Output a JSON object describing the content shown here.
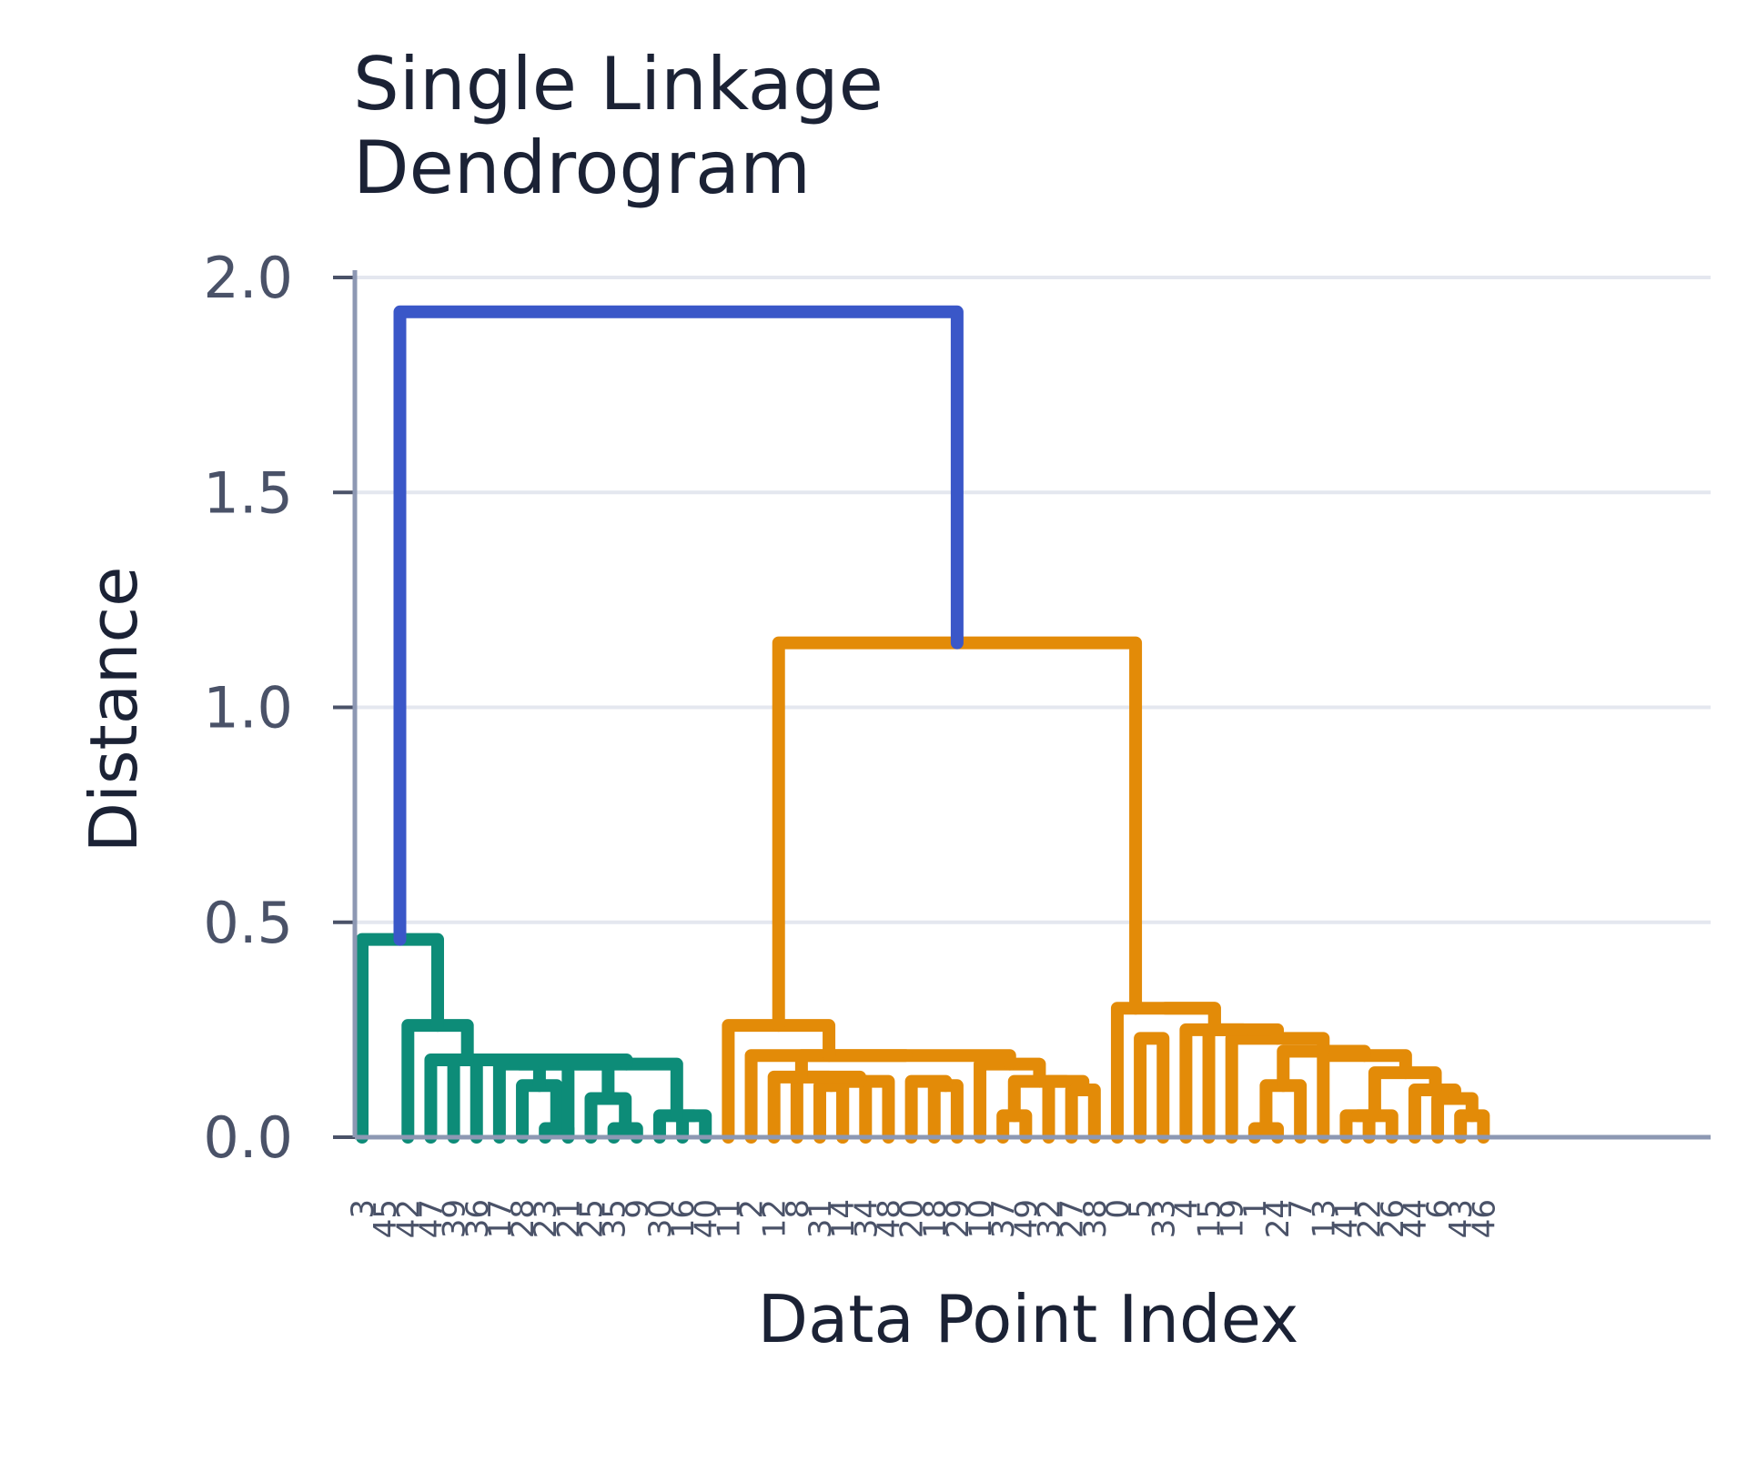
{
  "chart_data": {
    "type": "dendrogram",
    "title_lines": [
      "Single Linkage",
      "Dendrogram"
    ],
    "xlabel": "Data Point Index",
    "ylabel": "Distance",
    "ylim": [
      0,
      2.0
    ],
    "yticks": [
      0.0,
      0.5,
      1.0,
      1.5,
      2.0
    ],
    "ytick_labels": [
      "0.0",
      "0.5",
      "1.0",
      "1.5",
      "2.0"
    ],
    "grid": true,
    "leaf_order": [
      "3",
      "45",
      "42",
      "47",
      "39",
      "36",
      "17",
      "28",
      "23",
      "21",
      "25",
      "35",
      "9",
      "30",
      "16",
      "40",
      "11",
      "2",
      "12",
      "8",
      "31",
      "14",
      "34",
      "48",
      "20",
      "18",
      "29",
      "10",
      "37",
      "49",
      "32",
      "27",
      "38",
      "0",
      "5",
      "33",
      "4",
      "15",
      "19",
      "1",
      "24",
      "7",
      "13",
      "41",
      "22",
      "26",
      "44",
      "6",
      "43",
      "46"
    ],
    "colors": {
      "cluster_green": "#0d8c78",
      "cluster_orange": "#e38b08",
      "root_blue": "#3a57c8",
      "grid": "#e4e7ef",
      "axis": "#8d98b3"
    },
    "links": [
      {
        "x": [
          8,
          8,
          9,
          9
        ],
        "y": [
          0,
          0.02,
          0.02,
          0
        ],
        "color": "cluster_green"
      },
      {
        "x": [
          11,
          11,
          12,
          12
        ],
        "y": [
          0,
          0.02,
          0.02,
          0
        ],
        "color": "cluster_green"
      },
      {
        "x": [
          10,
          10,
          11.5,
          11.5
        ],
        "y": [
          0,
          0.09,
          0.09,
          0.02
        ],
        "color": "cluster_green"
      },
      {
        "x": [
          14,
          14,
          15,
          15
        ],
        "y": [
          0,
          0.05,
          0.05,
          0
        ],
        "color": "cluster_green"
      },
      {
        "x": [
          13,
          13,
          14.5,
          14.5
        ],
        "y": [
          0,
          0.05,
          0.05,
          0.05
        ],
        "color": "cluster_green"
      },
      {
        "x": [
          7,
          7,
          8.5,
          8.5
        ],
        "y": [
          0,
          0.12,
          0.12,
          0.02
        ],
        "color": "cluster_green"
      },
      {
        "x": [
          6,
          6,
          7.75,
          7.75
        ],
        "y": [
          0,
          0.17,
          0.17,
          0.12
        ],
        "color": "cluster_green"
      },
      {
        "x": [
          6.875,
          6.875,
          9,
          9
        ],
        "y": [
          0.17,
          0.17,
          0.17,
          0
        ],
        "color": "cluster_green"
      },
      {
        "x": [
          7.9375,
          7.9375,
          10.75,
          10.75
        ],
        "y": [
          0.17,
          0.17,
          0.17,
          0.09
        ],
        "color": "cluster_green"
      },
      {
        "x": [
          9.34,
          9.34,
          13.75,
          13.75
        ],
        "y": [
          0.17,
          0.17,
          0.17,
          0.05
        ],
        "color": "cluster_green"
      },
      {
        "x": [
          5,
          5,
          11.55,
          11.55
        ],
        "y": [
          0,
          0.18,
          0.18,
          0.17
        ],
        "color": "cluster_green"
      },
      {
        "x": [
          4,
          4,
          8.3,
          8.3
        ],
        "y": [
          0,
          0.18,
          0.18,
          0.18
        ],
        "color": "cluster_green"
      },
      {
        "x": [
          3,
          3,
          6.15,
          6.15
        ],
        "y": [
          0,
          0.18,
          0.18,
          0.18
        ],
        "color": "cluster_green"
      },
      {
        "x": [
          2,
          2,
          4.6,
          4.6
        ],
        "y": [
          0,
          0.26,
          0.26,
          0.18
        ],
        "color": "cluster_green"
      },
      {
        "x": [
          0,
          0,
          3.3,
          3.3
        ],
        "y": [
          0,
          0.46,
          0.46,
          0.26
        ],
        "color": "cluster_green"
      },
      {
        "x": [
          20,
          20,
          21,
          21
        ],
        "y": [
          0,
          0.12,
          0.12,
          0
        ],
        "color": "cluster_orange"
      },
      {
        "x": [
          21,
          21,
          22,
          22
        ],
        "y": [
          0,
          0.13,
          0.13,
          0
        ],
        "color": "cluster_orange"
      },
      {
        "x": [
          20.5,
          20.5,
          23,
          23
        ],
        "y": [
          0.12,
          0.13,
          0.13,
          0
        ],
        "color": "cluster_orange"
      },
      {
        "x": [
          25,
          25,
          26,
          26
        ],
        "y": [
          0,
          0.12,
          0.12,
          0
        ],
        "color": "cluster_orange"
      },
      {
        "x": [
          24,
          24,
          25.5,
          25.5
        ],
        "y": [
          0,
          0.13,
          0.13,
          0.12
        ],
        "color": "cluster_orange"
      },
      {
        "x": [
          19,
          19,
          21.75,
          21.75
        ],
        "y": [
          0,
          0.14,
          0.14,
          0.13
        ],
        "color": "cluster_orange"
      },
      {
        "x": [
          18,
          18,
          20.4,
          20.4
        ],
        "y": [
          0,
          0.14,
          0.14,
          0.14
        ],
        "color": "cluster_orange"
      },
      {
        "x": [
          28,
          28,
          29,
          29
        ],
        "y": [
          0,
          0.05,
          0.05,
          0
        ],
        "color": "cluster_orange"
      },
      {
        "x": [
          31,
          31,
          32,
          32
        ],
        "y": [
          0,
          0.11,
          0.11,
          0
        ],
        "color": "cluster_orange"
      },
      {
        "x": [
          30,
          30,
          31.5,
          31.5
        ],
        "y": [
          0,
          0.13,
          0.13,
          0.11
        ],
        "color": "cluster_orange"
      },
      {
        "x": [
          28.5,
          28.5,
          30.75,
          30.75
        ],
        "y": [
          0.05,
          0.13,
          0.13,
          0.13
        ],
        "color": "cluster_orange"
      },
      {
        "x": [
          27,
          27,
          29.6,
          29.6
        ],
        "y": [
          0,
          0.17,
          0.17,
          0.13
        ],
        "color": "cluster_orange"
      },
      {
        "x": [
          19.2,
          19.2,
          28.3,
          28.3
        ],
        "y": [
          0.14,
          0.19,
          0.19,
          0.17
        ],
        "color": "cluster_orange"
      },
      {
        "x": [
          17,
          17,
          23.75,
          23.75
        ],
        "y": [
          0,
          0.19,
          0.19,
          0.19
        ],
        "color": "cluster_orange"
      },
      {
        "x": [
          16,
          16,
          20.4,
          20.4
        ],
        "y": [
          0,
          0.26,
          0.26,
          0.19
        ],
        "color": "cluster_orange"
      },
      {
        "x": [
          39,
          39,
          40,
          40
        ],
        "y": [
          0,
          0.02,
          0.02,
          0
        ],
        "color": "cluster_orange"
      },
      {
        "x": [
          39.5,
          39.5,
          41,
          41
        ],
        "y": [
          0.02,
          0.12,
          0.12,
          0
        ],
        "color": "cluster_orange"
      },
      {
        "x": [
          43,
          43,
          44,
          44
        ],
        "y": [
          0,
          0.05,
          0.05,
          0
        ],
        "color": "cluster_orange"
      },
      {
        "x": [
          43.5,
          43.5,
          45,
          45
        ],
        "y": [
          0.05,
          0.05,
          0.05,
          0
        ],
        "color": "cluster_orange"
      },
      {
        "x": [
          48,
          48,
          49,
          49
        ],
        "y": [
          0,
          0.05,
          0.05,
          0
        ],
        "color": "cluster_orange"
      },
      {
        "x": [
          47,
          47,
          48.5,
          48.5
        ],
        "y": [
          0,
          0.09,
          0.09,
          0.05
        ],
        "color": "cluster_orange"
      },
      {
        "x": [
          46,
          46,
          47.75,
          47.75
        ],
        "y": [
          0,
          0.11,
          0.11,
          0.09
        ],
        "color": "cluster_orange"
      },
      {
        "x": [
          44.25,
          44.25,
          46.9,
          46.9
        ],
        "y": [
          0.05,
          0.15,
          0.15,
          0.11
        ],
        "color": "cluster_orange"
      },
      {
        "x": [
          42,
          42,
          45.6,
          45.6
        ],
        "y": [
          0,
          0.19,
          0.19,
          0.15
        ],
        "color": "cluster_orange"
      },
      {
        "x": [
          40.25,
          40.25,
          43.8,
          43.8
        ],
        "y": [
          0.12,
          0.2,
          0.2,
          0.19
        ],
        "color": "cluster_orange"
      },
      {
        "x": [
          38,
          38,
          42,
          42
        ],
        "y": [
          0,
          0.23,
          0.23,
          0.2
        ],
        "color": "cluster_orange"
      },
      {
        "x": [
          37,
          37,
          40,
          40
        ],
        "y": [
          0,
          0.25,
          0.25,
          0.23
        ],
        "color": "cluster_orange"
      },
      {
        "x": [
          36,
          36,
          38.5,
          38.5
        ],
        "y": [
          0,
          0.25,
          0.25,
          0.25
        ],
        "color": "cluster_orange"
      },
      {
        "x": [
          34,
          34,
          35,
          35
        ],
        "y": [
          0,
          0.23,
          0.23,
          0
        ],
        "color": "cluster_orange"
      },
      {
        "x": [
          33,
          33,
          37.25,
          37.25
        ],
        "y": [
          0,
          0.3,
          0.3,
          0.25
        ],
        "color": "cluster_orange"
      },
      {
        "x": [
          35.1,
          35.1,
          37.25,
          37.25
        ],
        "y": [
          0.3,
          0.3,
          0.3,
          0.25
        ],
        "color": "cluster_orange"
      },
      {
        "x": [
          18.2,
          18.2,
          33.8,
          33.8
        ],
        "y": [
          0.26,
          1.15,
          1.15,
          0.3
        ],
        "color": "cluster_orange"
      },
      {
        "x": [
          1.65,
          1.65,
          26,
          26
        ],
        "y": [
          0.46,
          1.92,
          1.92,
          1.15
        ],
        "color": "root_blue"
      }
    ]
  }
}
